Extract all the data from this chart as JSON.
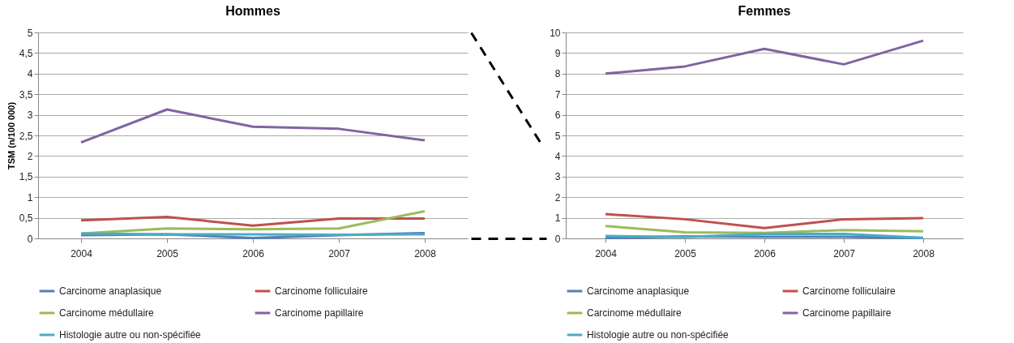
{
  "chart_data": [
    {
      "type": "line",
      "title": "Hommes",
      "ylabel": "TSM (n/100 000)",
      "categories": [
        "2004",
        "2005",
        "2006",
        "2007",
        "2008"
      ],
      "ylim": [
        0,
        5
      ],
      "yticks": [
        0,
        {
          "value": 0.5,
          "label": "0,5"
        },
        1,
        {
          "value": 1.5,
          "label": "1,5"
        },
        2,
        {
          "value": 2.5,
          "label": "2,5"
        },
        3,
        {
          "value": 3.5,
          "label": "3,5"
        },
        4,
        {
          "value": 4.5,
          "label": "4,5"
        },
        5
      ],
      "grid": "y",
      "legend": "bottom",
      "line_style": "solid",
      "series": [
        {
          "name": "Carcinome anaplasique",
          "color": "#4f81bd",
          "values": [
            0.08,
            0.1,
            0.01,
            0.08,
            0.13
          ]
        },
        {
          "name": "Carcinome folliculaire",
          "color": "#c0504d",
          "values": [
            0.44,
            0.52,
            0.31,
            0.48,
            0.48
          ]
        },
        {
          "name": "Carcinome médullaire",
          "color": "#9bbb59",
          "values": [
            0.12,
            0.24,
            0.22,
            0.24,
            0.66
          ]
        },
        {
          "name": "Carcinome papillaire",
          "color": "#8064a2",
          "values": [
            2.33,
            3.13,
            2.71,
            2.66,
            2.38
          ]
        },
        {
          "name": "Histologie autre ou non-spécifiée",
          "color": "#4bacc6",
          "values": [
            0.12,
            0.1,
            0.1,
            0.09,
            0.1
          ]
        }
      ]
    },
    {
      "type": "line",
      "title": "Femmes",
      "categories": [
        "2004",
        "2005",
        "2006",
        "2007",
        "2008"
      ],
      "ylim": [
        0,
        10
      ],
      "yticks": [
        0,
        1,
        2,
        3,
        4,
        5,
        6,
        7,
        8,
        9,
        10
      ],
      "grid": "y",
      "legend": "bottom",
      "line_style": "solid",
      "series": [
        {
          "name": "Carcinome anaplasique",
          "color": "#4f81bd",
          "values": [
            0.02,
            0.1,
            0.08,
            0.08,
            0.02
          ]
        },
        {
          "name": "Carcinome folliculaire",
          "color": "#c0504d",
          "values": [
            1.18,
            0.93,
            0.5,
            0.93,
            0.98
          ]
        },
        {
          "name": "Carcinome médullaire",
          "color": "#9bbb59",
          "values": [
            0.6,
            0.3,
            0.27,
            0.4,
            0.34
          ]
        },
        {
          "name": "Carcinome papillaire",
          "color": "#8064a2",
          "values": [
            8.0,
            8.35,
            9.2,
            8.45,
            9.6
          ]
        },
        {
          "name": "Histologie autre ou non-spécifiée",
          "color": "#4bacc6",
          "values": [
            0.12,
            0.07,
            0.22,
            0.22,
            0.03
          ]
        }
      ]
    }
  ]
}
